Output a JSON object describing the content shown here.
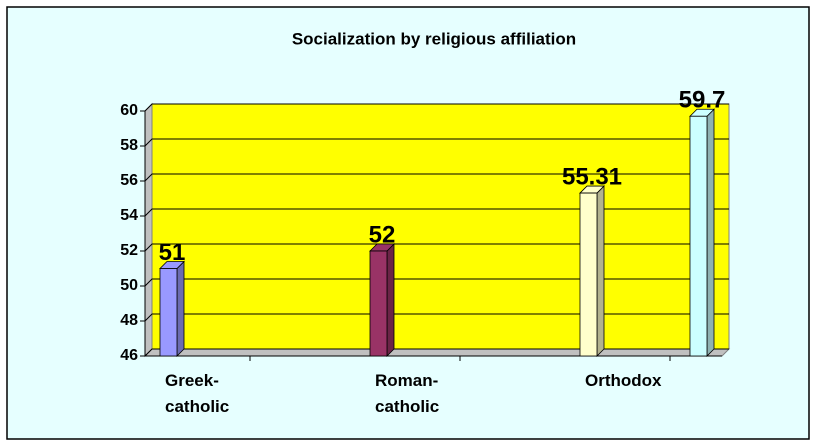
{
  "chart_data": {
    "type": "bar",
    "title": "Socialization by religious affiliation",
    "categories": [
      "Greek-catholic",
      "Roman-catholic",
      "Orthodox",
      null
    ],
    "series": [
      {
        "values": [
          51,
          52,
          55.31,
          59.7
        ],
        "colors": [
          "#9999ff",
          "#993366",
          "#ffffcc",
          "#ccffff"
        ]
      }
    ],
    "ylim": [
      46,
      60
    ],
    "yticks": [
      46,
      48,
      50,
      52,
      54,
      56,
      58,
      60
    ],
    "grid": true
  }
}
